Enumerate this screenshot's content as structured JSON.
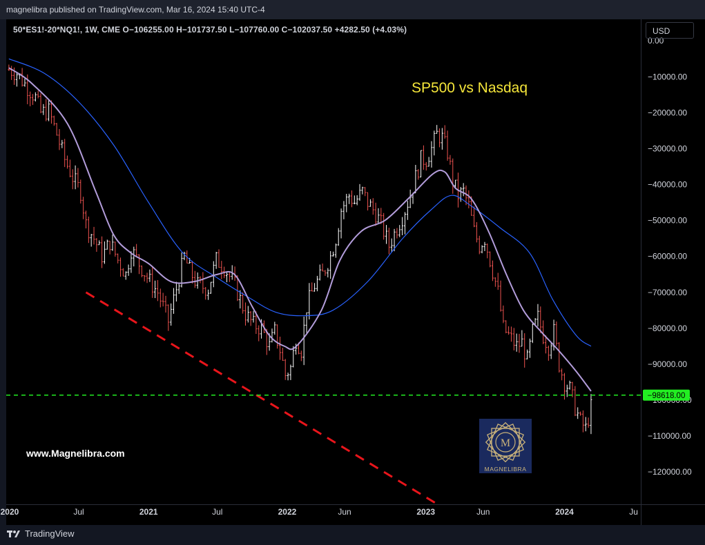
{
  "header": {
    "published": "magnelibra published on TradingView.com, Mar 16, 2024 15:40 UTC-4"
  },
  "legend": {
    "text": "50*ES1!-20*NQ1!, 1W, CME  O−106255.00  H−101737.50  L−107760.00  C−102037.50  +4282.50 (+4.03%)"
  },
  "currency_button": "USD",
  "annotations": {
    "title": "SP500 vs Nasdaq",
    "website": "www.Magnelibra.com",
    "logo_text": "MAGNELIBRA",
    "logo_monogram": "M",
    "level_label": "−98618.00"
  },
  "footer": {
    "brand": "TradingView"
  },
  "colors": {
    "up": "#ffffff",
    "down": "#ef5350",
    "ma_fast": "#b39ddb",
    "ma_slow": "#2962ff",
    "title": "#f5e63a",
    "level": "#22ee22",
    "trendline": "#e8151b",
    "logo_bg": "#1a2a5e",
    "logo_gold": "#c9b27a"
  },
  "chart_data": {
    "type": "candlestick",
    "title": "SP500 vs Nasdaq",
    "timeframe": "1W",
    "x_ticks": [
      "2020",
      "Jul",
      "2021",
      "Jul",
      "2022",
      "Jun",
      "2023",
      "Jun",
      "2024",
      "Ju"
    ],
    "y_ticks": [
      "0.00",
      "−10000.00",
      "−20000.00",
      "−30000.00",
      "−40000.00",
      "−50000.00",
      "−60000.00",
      "−70000.00",
      "−80000.00",
      "−90000.00",
      "−100000.00",
      "−110000.00",
      "−120000.00"
    ],
    "ylim": [
      -129000,
      6000
    ],
    "xlim": [
      "2019-12-23",
      "2024-07-20"
    ],
    "price_path": [
      [
        "2019-12-30",
        -8000
      ],
      [
        "2020-01-20",
        -9000
      ],
      [
        "2020-02-10",
        -12000
      ],
      [
        "2020-03-10",
        -16000
      ],
      [
        "2020-03-23",
        -20000
      ],
      [
        "2020-04-13",
        -19500
      ],
      [
        "2020-05-04",
        -26000
      ],
      [
        "2020-05-25",
        -33000
      ],
      [
        "2020-06-15",
        -38000
      ],
      [
        "2020-07-06",
        -42000
      ],
      [
        "2020-07-20",
        -51000
      ],
      [
        "2020-08-10",
        -55000
      ],
      [
        "2020-09-01",
        -60000
      ],
      [
        "2020-09-21",
        -56000
      ],
      [
        "2020-10-12",
        -61000
      ],
      [
        "2020-11-02",
        -65000
      ],
      [
        "2020-11-16",
        -58000
      ],
      [
        "2020-12-07",
        -62000
      ],
      [
        "2021-01-04",
        -67000
      ],
      [
        "2021-01-25",
        -70000
      ],
      [
        "2021-02-08",
        -74000
      ],
      [
        "2021-02-22",
        -78000
      ],
      [
        "2021-03-08",
        -72000
      ],
      [
        "2021-04-05",
        -60000
      ],
      [
        "2021-04-19",
        -64000
      ],
      [
        "2021-05-10",
        -68000
      ],
      [
        "2021-06-07",
        -69000
      ],
      [
        "2021-06-28",
        -61000
      ],
      [
        "2021-07-19",
        -63000
      ],
      [
        "2021-08-16",
        -68000
      ],
      [
        "2021-09-13",
        -76000
      ],
      [
        "2021-10-04",
        -79000
      ],
      [
        "2021-10-25",
        -80000
      ],
      [
        "2021-11-15",
        -85000
      ],
      [
        "2021-11-29",
        -81000
      ],
      [
        "2021-12-13",
        -86000
      ],
      [
        "2021-12-27",
        -93000
      ],
      [
        "2022-01-10",
        -91000
      ],
      [
        "2022-01-24",
        -83000
      ],
      [
        "2022-02-07",
        -86000
      ],
      [
        "2022-02-21",
        -74000
      ],
      [
        "2022-03-14",
        -68000
      ],
      [
        "2022-04-04",
        -65000
      ],
      [
        "2022-04-25",
        -60000
      ],
      [
        "2022-05-09",
        -55000
      ],
      [
        "2022-05-23",
        -47000
      ],
      [
        "2022-06-13",
        -43000
      ],
      [
        "2022-06-27",
        -45000
      ],
      [
        "2022-07-18",
        -42000
      ],
      [
        "2022-08-01",
        -45000
      ],
      [
        "2022-08-22",
        -48000
      ],
      [
        "2022-09-05",
        -51000
      ],
      [
        "2022-09-26",
        -57000
      ],
      [
        "2022-10-17",
        -52000
      ],
      [
        "2022-10-31",
        -49000
      ],
      [
        "2022-11-21",
        -43000
      ],
      [
        "2022-12-05",
        -38000
      ],
      [
        "2022-12-19",
        -33000
      ],
      [
        "2023-01-02",
        -33000
      ],
      [
        "2023-01-16",
        -30000
      ],
      [
        "2023-01-30",
        -26000
      ],
      [
        "2023-02-13",
        -27000
      ],
      [
        "2023-02-27",
        -31000
      ],
      [
        "2023-03-13",
        -39000
      ],
      [
        "2023-03-27",
        -43000
      ],
      [
        "2023-04-10",
        -42000
      ],
      [
        "2023-04-24",
        -46000
      ],
      [
        "2023-05-08",
        -53000
      ],
      [
        "2023-05-22",
        -57000
      ],
      [
        "2023-06-05",
        -55000
      ],
      [
        "2023-06-19",
        -61000
      ],
      [
        "2023-07-10",
        -70000
      ],
      [
        "2023-07-24",
        -80000
      ],
      [
        "2023-08-14",
        -83000
      ],
      [
        "2023-08-28",
        -85000
      ],
      [
        "2023-09-11",
        -84000
      ],
      [
        "2023-09-25",
        -89000
      ],
      [
        "2023-10-09",
        -81000
      ],
      [
        "2023-10-23",
        -77000
      ],
      [
        "2023-11-06",
        -82000
      ],
      [
        "2023-11-20",
        -85000
      ],
      [
        "2023-12-04",
        -81000
      ],
      [
        "2023-12-18",
        -90000
      ],
      [
        "2024-01-01",
        -95000
      ],
      [
        "2024-01-15",
        -97000
      ],
      [
        "2024-01-29",
        -102000
      ],
      [
        "2024-02-12",
        -106000
      ],
      [
        "2024-02-26",
        -108000
      ],
      [
        "2024-03-11",
        -102037.5
      ]
    ],
    "ma_fast": [
      [
        "2019-12-30",
        -7500
      ],
      [
        "2020-03-01",
        -12000
      ],
      [
        "2020-06-01",
        -23000
      ],
      [
        "2020-08-15",
        -42000
      ],
      [
        "2020-10-01",
        -54000
      ],
      [
        "2020-11-15",
        -59000
      ],
      [
        "2021-01-01",
        -62000
      ],
      [
        "2021-03-01",
        -67000
      ],
      [
        "2021-05-01",
        -67000
      ],
      [
        "2021-07-01",
        -65000
      ],
      [
        "2021-08-15",
        -65000
      ],
      [
        "2021-10-01",
        -74000
      ],
      [
        "2021-11-15",
        -82000
      ],
      [
        "2021-12-25",
        -85000
      ],
      [
        "2022-01-25",
        -85000
      ],
      [
        "2022-04-01",
        -75000
      ],
      [
        "2022-05-20",
        -61000
      ],
      [
        "2022-07-15",
        -53000
      ],
      [
        "2022-09-15",
        -50000
      ],
      [
        "2022-11-15",
        -44000
      ],
      [
        "2023-01-20",
        -37000
      ],
      [
        "2023-02-20",
        -36500
      ],
      [
        "2023-03-20",
        -41000
      ],
      [
        "2023-05-01",
        -44000
      ],
      [
        "2023-06-15",
        -53000
      ],
      [
        "2023-08-01",
        -65000
      ],
      [
        "2023-09-15",
        -75000
      ],
      [
        "2023-11-01",
        -81000
      ],
      [
        "2023-12-15",
        -86000
      ],
      [
        "2024-02-01",
        -92000
      ],
      [
        "2024-03-11",
        -97500
      ]
    ],
    "ma_slow": [
      [
        "2019-12-30",
        -5000
      ],
      [
        "2020-04-01",
        -9000
      ],
      [
        "2020-07-01",
        -17000
      ],
      [
        "2020-10-01",
        -29000
      ],
      [
        "2021-01-01",
        -45000
      ],
      [
        "2021-04-01",
        -59000
      ],
      [
        "2021-07-01",
        -66000
      ],
      [
        "2021-09-15",
        -71000
      ],
      [
        "2021-12-01",
        -75500
      ],
      [
        "2022-02-15",
        -76500
      ],
      [
        "2022-05-01",
        -75000
      ],
      [
        "2022-08-01",
        -67000
      ],
      [
        "2022-11-01",
        -55000
      ],
      [
        "2023-01-15",
        -47000
      ],
      [
        "2023-03-10",
        -43000
      ],
      [
        "2023-05-01",
        -46000
      ],
      [
        "2023-07-15",
        -52000
      ],
      [
        "2023-10-01",
        -59000
      ],
      [
        "2023-12-01",
        -72000
      ],
      [
        "2024-02-01",
        -82000
      ],
      [
        "2024-03-11",
        -85000
      ]
    ],
    "level_line": -98618,
    "trendline": [
      [
        "2020-07-20",
        -70000
      ],
      [
        "2023-02-01",
        -129000
      ]
    ]
  }
}
